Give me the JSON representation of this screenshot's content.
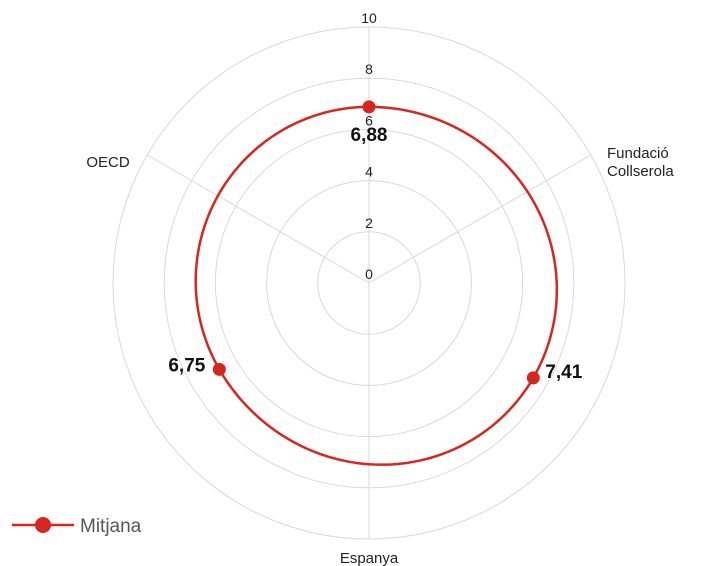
{
  "chart_data": {
    "type": "radar",
    "axes": [
      {
        "label_lines": [
          "Fundació",
          "Collserola"
        ]
      },
      {
        "label_lines": [
          "Espanya"
        ]
      },
      {
        "label_lines": [
          "OECD"
        ]
      }
    ],
    "series": [
      {
        "name": "Mitjana",
        "values": [
          7.41,
          6.88,
          6.75
        ],
        "color": "#d7261e"
      }
    ],
    "data_labels": [
      "7,41",
      "6,88",
      "6,75"
    ],
    "rlim": [
      0,
      10
    ],
    "ticks": [
      0,
      2,
      4,
      6,
      8,
      10
    ],
    "tick_labels": [
      "0",
      "2",
      "4",
      "6",
      "8",
      "10"
    ],
    "grid": true,
    "legend_position": "bottom-left",
    "grid_color": "#d9d9d9"
  }
}
